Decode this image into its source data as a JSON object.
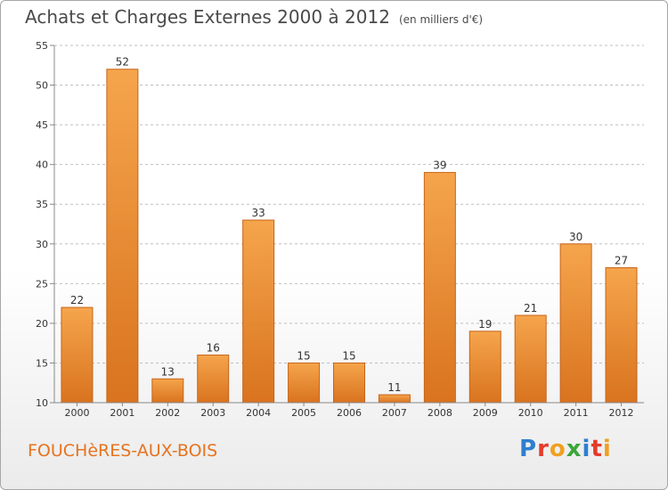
{
  "header": {
    "title": "Achats et Charges Externes 2000 à 2012",
    "subtitle": "(en milliers d'€)"
  },
  "footer": {
    "commune": "FOUCHèRES-AUX-BOIS",
    "logo": {
      "text": "Proxiti",
      "letter_colors": [
        "#2e7fd0",
        "#e63a2a",
        "#f0a020",
        "#3aa63a",
        "#2e7fd0",
        "#e63a2a",
        "#f0a020"
      ]
    }
  },
  "colors": {
    "bar_light": "#f5a54c",
    "bar_dark": "#d9731f",
    "bar_border": "#c86418",
    "grid": "#bfbfbf",
    "axis": "#888888"
  },
  "chart_data": {
    "type": "bar",
    "title": "Achats et Charges Externes 2000 à 2012",
    "subtitle": "(en milliers d'€)",
    "categories": [
      "2000",
      "2001",
      "2002",
      "2003",
      "2004",
      "2005",
      "2006",
      "2007",
      "2008",
      "2009",
      "2010",
      "2011",
      "2012"
    ],
    "values": [
      22,
      52,
      13,
      16,
      33,
      15,
      15,
      11,
      39,
      19,
      21,
      30,
      27
    ],
    "ylim": [
      10,
      55
    ],
    "yticks": [
      10,
      15,
      20,
      25,
      30,
      35,
      40,
      45,
      50,
      55
    ],
    "grid": true,
    "data_labels": true
  }
}
